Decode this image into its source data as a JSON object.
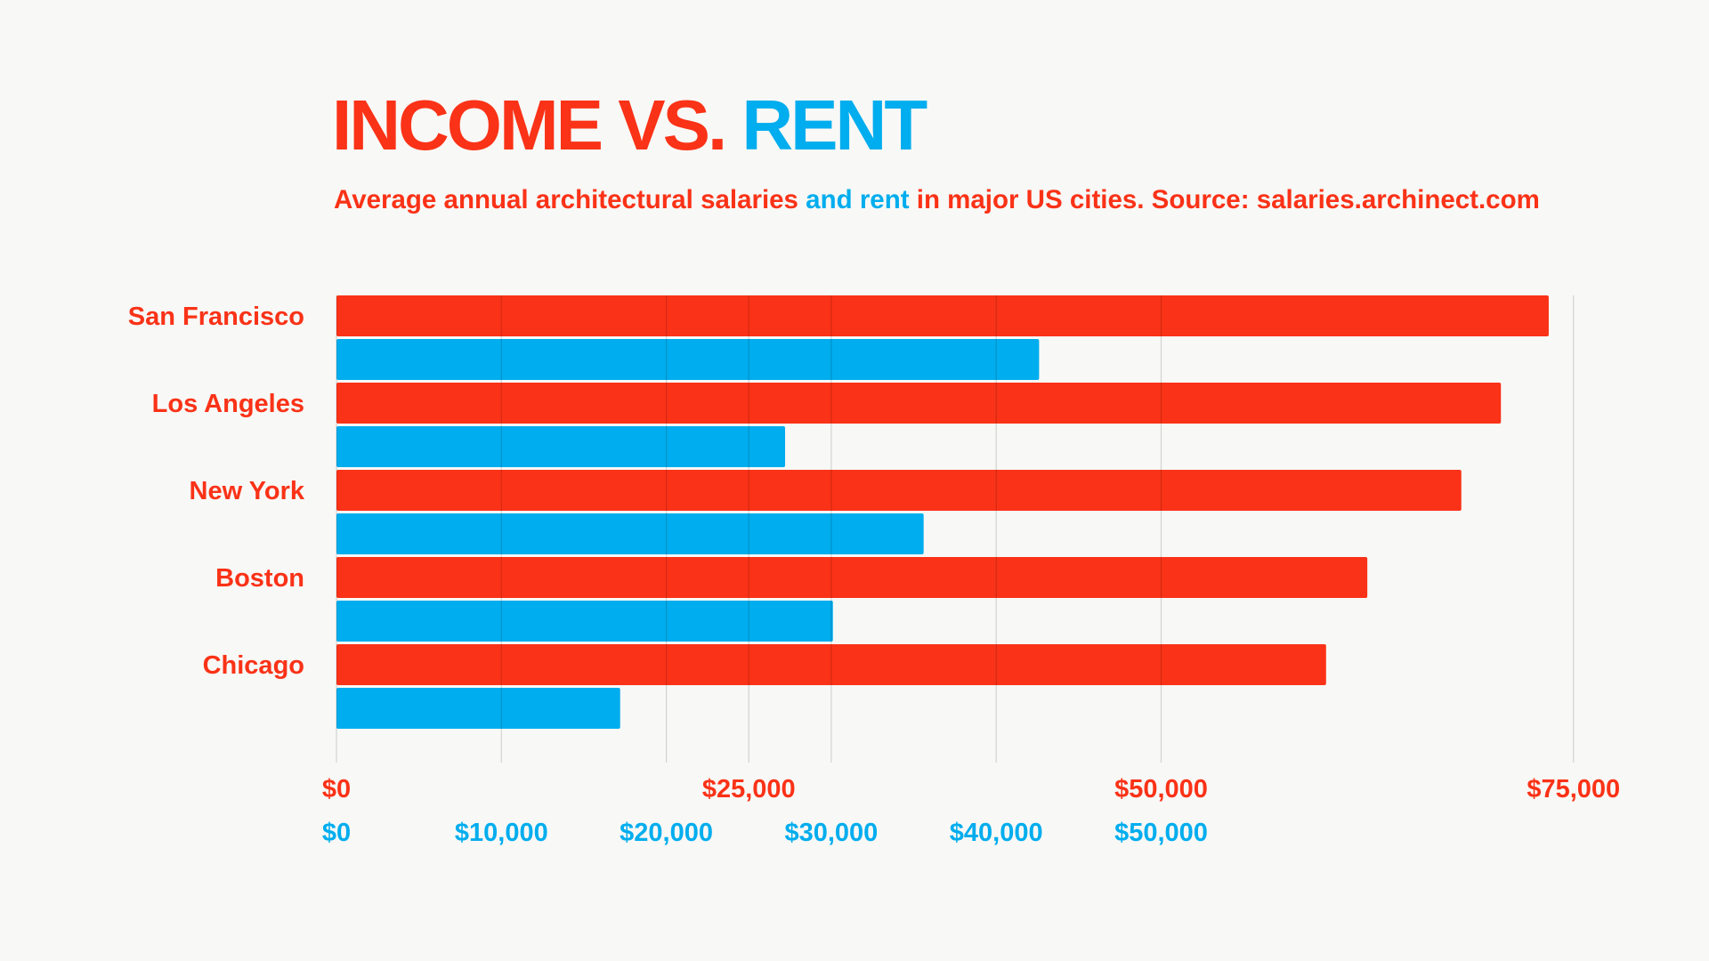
{
  "colors": {
    "income": "#fa3217",
    "rent": "#00adee",
    "background": "#f8f8f6",
    "grid": "#c8c8c8"
  },
  "title": {
    "part1": "INCOME VS. ",
    "part2": "RENT"
  },
  "subtitle": {
    "part1": "Average annual architectural salaries ",
    "part2": "and rent",
    "part3": " in major US cities. Source: salaries.archinect.com"
  },
  "chart_data": {
    "type": "bar",
    "orientation": "horizontal",
    "categories": [
      "San Francisco",
      "Los Angeles",
      "New York",
      "Boston",
      "Chicago"
    ],
    "series": [
      {
        "values": [
          73500,
          70600,
          68200,
          62500,
          60000
        ]
      },
      {
        "values": [
          42600,
          27200,
          35600,
          30100,
          17200
        ]
      }
    ],
    "income_axis": {
      "ticks": [
        0,
        25000,
        50000,
        75000
      ],
      "tick_labels": [
        "$0",
        "$25,000",
        "$50,000",
        "$75,000"
      ],
      "range": [
        0,
        75000
      ]
    },
    "rent_axis": {
      "ticks": [
        0,
        10000,
        20000,
        30000,
        40000,
        50000
      ],
      "tick_labels": [
        "$0",
        "$10,000",
        "$20,000",
        "$30,000",
        "$40,000",
        "$50,000"
      ],
      "range": [
        0,
        50000
      ]
    },
    "grid": true
  }
}
